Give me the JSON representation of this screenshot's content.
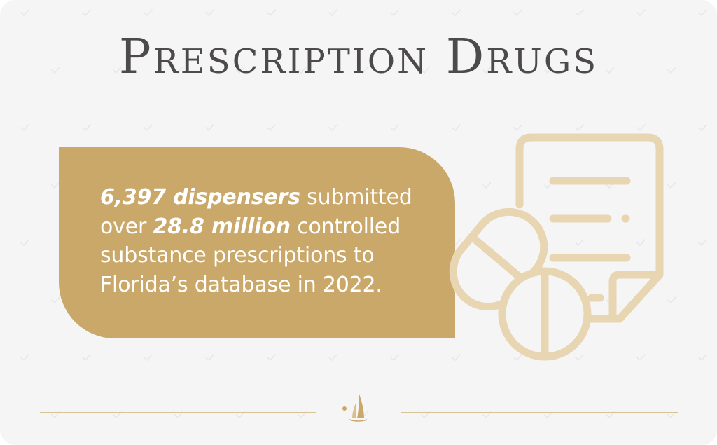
{
  "title": "Prescription Drugs",
  "stat": {
    "lead_bold": "6,397 dispensers",
    "text_1": " submitted over ",
    "mid_bold": "28.8 million",
    "text_2": " controlled substance prescriptions to Florida’s database in 2022."
  },
  "illustration": {
    "icon": "prescription-pills-icon"
  },
  "footer": {
    "logo_icon": "sailboat-logo-icon"
  },
  "colors": {
    "background": "#f6f5f6",
    "accent": "#c9a86a",
    "icon_stroke": "#e8d5b1",
    "title": "#4d4a4b",
    "rule": "#d8c396"
  }
}
